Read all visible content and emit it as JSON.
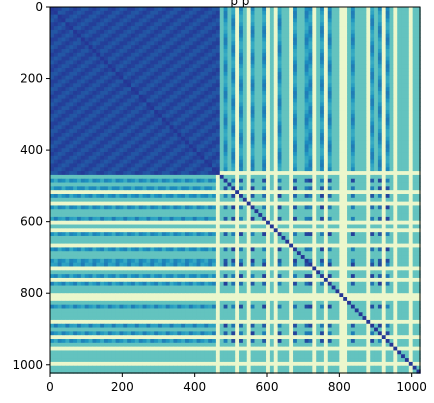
{
  "chart_data": {
    "type": "heatmap",
    "title": "_ p p",
    "xlabel": "",
    "ylabel": "",
    "x_range": [
      0,
      1023
    ],
    "y_range": [
      0,
      1023
    ],
    "y_inverted": true,
    "x_ticks": [
      0,
      200,
      400,
      600,
      800,
      1000
    ],
    "y_ticks": [
      0,
      200,
      400,
      600,
      800,
      1000
    ],
    "colormap": [
      "#ffffd9",
      "#c7e9b4",
      "#7fcdbb",
      "#41b6c4",
      "#1d91c0",
      "#225ea8",
      "#253494",
      "#081d58"
    ],
    "grid": false,
    "legend": "none",
    "structure": {
      "low_region_end": 460,
      "bright_line_positions": [
        462,
        478,
        497,
        520,
        535,
        548,
        568,
        582,
        603,
        615,
        628,
        650,
        668,
        688,
        702,
        728,
        745,
        762,
        781,
        798,
        811,
        827,
        846,
        863,
        880,
        905,
        922,
        940,
        957,
        970,
        985,
        999,
        1012,
        1020
      ],
      "strong_bright_positions": [
        462,
        520,
        548,
        603,
        628,
        668,
        728,
        762,
        811,
        880,
        922,
        957,
        999
      ],
      "background_value_low_region": 0.2,
      "background_value_high_region": 0.45
    }
  }
}
